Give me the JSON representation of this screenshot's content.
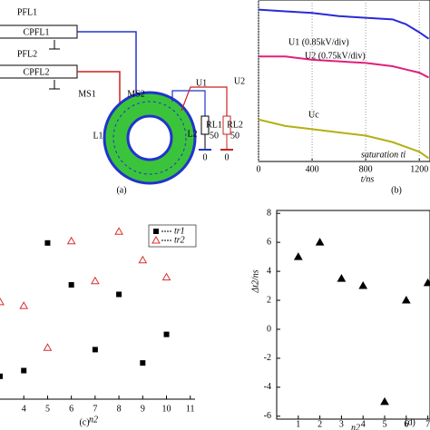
{
  "diagram": {
    "labels": [
      "PFL1",
      "CPFL1",
      "PFL2",
      "CPFL2",
      "MS1",
      "MS2",
      "L1",
      "L2",
      "U1",
      "U2",
      "RL1",
      "50",
      "RL2",
      "50",
      "0",
      "0"
    ],
    "panel": "(a)"
  },
  "chart_data": [
    {
      "type": "line",
      "panel": "(b)",
      "x_label": "t/ns",
      "x": [
        0,
        200,
        400,
        600,
        800,
        1000,
        1100,
        1200,
        1270
      ],
      "xlim": [
        0,
        1280
      ],
      "xticks": [
        0,
        400,
        800,
        1200
      ],
      "ylim": [
        0,
        10
      ],
      "grid": true,
      "series": [
        {
          "name": "U1 (0.85kV/div)",
          "color": "#2a2ad8",
          "values": [
            9.4,
            9.3,
            9.2,
            9.0,
            8.9,
            8.8,
            8.5,
            8.0,
            7.6
          ]
        },
        {
          "name": "U2 (0.75kV/div)",
          "color": "#e0207a",
          "values": [
            6.5,
            6.5,
            6.3,
            6.2,
            6.1,
            5.9,
            5.7,
            5.5,
            5.2
          ]
        },
        {
          "name": "Uc",
          "color": "#b5b010",
          "values": [
            2.6,
            2.2,
            2.0,
            1.8,
            1.6,
            1.2,
            0.9,
            0.6,
            0.2
          ]
        }
      ],
      "annotations": [
        "saturation ti"
      ]
    },
    {
      "type": "scatter",
      "panel": "(c)",
      "x_label": "n2",
      "x": [
        3,
        4,
        5,
        6,
        7,
        8,
        9,
        10
      ],
      "xlim": [
        3,
        11.2
      ],
      "xticks": [
        4,
        5,
        6,
        7,
        8,
        9,
        10,
        11
      ],
      "ylim": [
        0,
        10
      ],
      "series": [
        {
          "name": "tr1",
          "color": "#000000",
          "marker": "square",
          "values": [
            1.2,
            1.5,
            8.2,
            6.0,
            2.6,
            5.5,
            1.9,
            3.4
          ]
        },
        {
          "name": "tr2",
          "color": "#d83030",
          "marker": "triangle-open",
          "values": [
            5.1,
            4.9,
            2.7,
            8.3,
            6.2,
            8.8,
            7.3,
            6.4
          ]
        }
      ]
    },
    {
      "type": "scatter",
      "panel": "(d)",
      "x_label": "n2",
      "y_label": "Δt2/ns",
      "x": [
        1,
        2,
        3,
        4,
        5,
        6,
        7
      ],
      "xlim": [
        0,
        7.1
      ],
      "xticks": [
        1,
        2,
        3,
        4,
        5,
        6,
        7
      ],
      "ylim": [
        -6.2,
        8.2
      ],
      "yticks": [
        -6,
        -4,
        -2,
        0,
        2,
        4,
        6,
        8
      ],
      "series": [
        {
          "color": "#000000",
          "marker": "triangle",
          "values": [
            5.0,
            6.0,
            3.5,
            3.0,
            -5.0,
            2.0,
            3.2
          ]
        }
      ]
    }
  ]
}
